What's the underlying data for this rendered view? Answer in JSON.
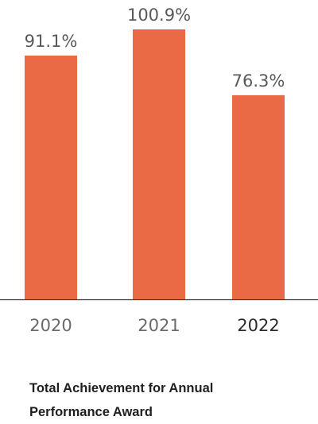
{
  "chart_data": {
    "type": "bar",
    "categories": [
      "2020",
      "2021",
      "2022"
    ],
    "values": [
      91.1,
      100.9,
      76.3
    ],
    "value_labels": [
      "91.1%",
      "100.9%",
      "76.3%"
    ],
    "title_lines": [
      "Total Achievement for Annual",
      "Performance Award"
    ],
    "xlabel": "",
    "ylabel": "",
    "ylim": [
      0,
      100.9
    ],
    "grid": false,
    "legend": "none",
    "colors": {
      "bar": "#e96a44",
      "axis": "#333333",
      "label": "#595959"
    }
  }
}
